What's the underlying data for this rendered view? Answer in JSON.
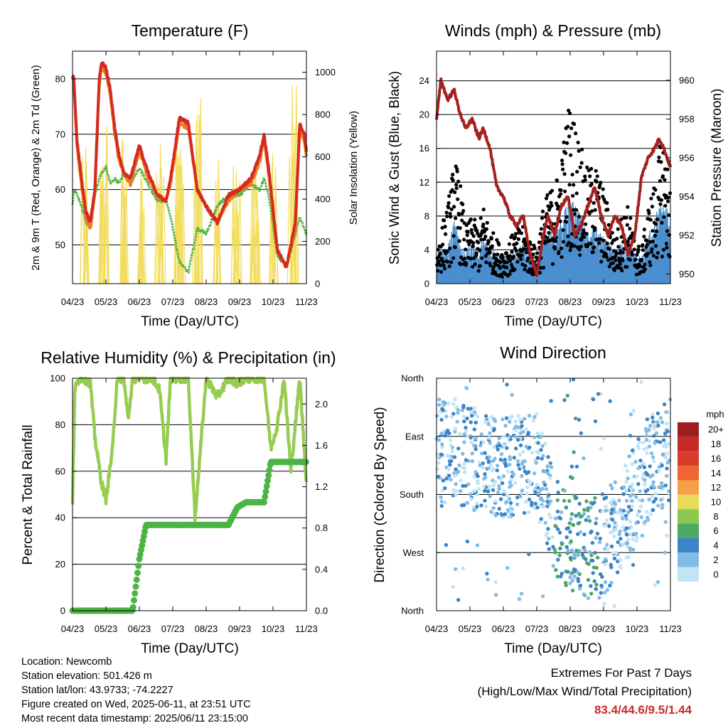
{
  "chart_data": [
    {
      "type": "line",
      "title": "Temperature (F)",
      "xlabel": "Time (Day/UTC)",
      "ylabel": "2m & 9m T (Red, Orange) & 2m Td (Green)",
      "y2label": "Solar Insolation (Yellow)",
      "xticks": [
        "04/23",
        "05/23",
        "06/23",
        "07/23",
        "08/23",
        "09/23",
        "10/23",
        "11/23"
      ],
      "ylim": [
        43,
        85
      ],
      "yticks": [
        50,
        60,
        70,
        80
      ],
      "y2lim": [
        0,
        1100
      ],
      "y2ticks": [
        0,
        200,
        400,
        600,
        800,
        1000
      ],
      "x": [
        0,
        0.05,
        0.2,
        0.4,
        0.6,
        0.8,
        1.0,
        1.2,
        1.3,
        1.5,
        1.7,
        1.9,
        2.1,
        2.3,
        2.6,
        3.0,
        3.4,
        3.8,
        4.2,
        4.4,
        4.8,
        5.2,
        5.6,
        6.0,
        6.5,
        7.0,
        7.5,
        8.0,
        8.4,
        8.6,
        8.8,
        9.2,
        9.6,
        10.0,
        10.2,
        10.4,
        10.5
      ],
      "series": [
        {
          "name": "2m T",
          "color": "#d42a22",
          "values": [
            80,
            81,
            69,
            62,
            56,
            54,
            60,
            80,
            83,
            82,
            78,
            71,
            66,
            63,
            62,
            68,
            63,
            59,
            58,
            62,
            73,
            72,
            60,
            57,
            54,
            59,
            60,
            62,
            66,
            70,
            64,
            49,
            46,
            54,
            72,
            70,
            67
          ]
        },
        {
          "name": "9m T",
          "color": "#f07a22",
          "values": [
            80,
            80,
            68,
            61,
            55,
            53,
            59,
            79,
            82,
            81,
            77,
            70,
            65,
            63,
            61,
            67,
            62,
            59,
            58,
            61,
            72,
            71,
            60,
            57,
            54,
            58,
            60,
            61,
            65,
            69,
            63,
            49,
            46,
            53,
            71,
            69,
            66
          ]
        },
        {
          "name": "2m Td",
          "color": "#5ab646",
          "values": [
            57,
            60,
            59,
            57,
            54,
            54,
            59,
            62,
            63,
            64,
            61,
            62,
            61,
            63,
            61,
            64,
            61,
            58,
            58,
            55,
            47,
            45,
            53,
            52,
            57,
            59,
            59,
            61,
            60,
            62,
            59,
            48,
            46,
            52,
            55,
            53,
            52
          ]
        }
      ],
      "solar_daily_peaks": [
        650,
        820,
        750,
        550,
        680,
        700,
        880,
        620,
        600,
        550,
        700,
        980
      ]
    },
    {
      "type": "scatter",
      "title": "Winds (mph) & Pressure (mb)",
      "xlabel": "Time (Day/UTC)",
      "ylabel": "Sonic Wind & Gust (Blue, Black)",
      "y2label": "Station Pressure (Maroon)",
      "xticks": [
        "04/23",
        "05/23",
        "06/23",
        "07/23",
        "08/23",
        "09/23",
        "10/23",
        "11/23"
      ],
      "ylim": [
        0,
        27.5
      ],
      "yticks": [
        0,
        4,
        8,
        12,
        16,
        20,
        24
      ],
      "y2lim": [
        949.5,
        961.5
      ],
      "y2ticks": [
        950,
        952,
        954,
        956,
        958,
        960
      ],
      "x": [
        0,
        0.2,
        0.5,
        0.8,
        1.0,
        1.3,
        1.6,
        1.9,
        2.1,
        2.4,
        2.7,
        3.0,
        3.3,
        3.6,
        3.9,
        4.2,
        4.5,
        4.8,
        5.0,
        5.3,
        5.6,
        5.9,
        6.2,
        6.5,
        6.8,
        7.1,
        7.4,
        7.7,
        8.0,
        8.3,
        8.6,
        8.9,
        9.2,
        9.5,
        9.8,
        10.0,
        10.2,
        10.5
      ],
      "pressure": [
        958,
        960,
        959,
        959.5,
        958.5,
        957.5,
        958,
        957,
        957.5,
        956.5,
        954.5,
        954,
        953,
        952.5,
        953,
        951,
        950,
        952,
        953,
        952,
        953.5,
        954,
        952,
        952.5,
        953.5,
        954.5,
        953,
        952,
        953,
        952.5,
        951,
        952,
        955,
        956,
        956.5,
        957,
        956.5,
        955.5
      ],
      "wind_mean": [
        1.5,
        2,
        2.5,
        4,
        3,
        2,
        2.5,
        2,
        3,
        2.5,
        2,
        1.5,
        2,
        2,
        2.5,
        2,
        1.5,
        3,
        3,
        3.5,
        4,
        5,
        5,
        4,
        3,
        3.5,
        3,
        2.5,
        2,
        2.5,
        3,
        2,
        1.5,
        3,
        4,
        5,
        5,
        4
      ],
      "gust": [
        3,
        5,
        7,
        11,
        10,
        5,
        6,
        5,
        7,
        5,
        4,
        3,
        4,
        5,
        5,
        4,
        3,
        7,
        8,
        9,
        11,
        16,
        15,
        12,
        10,
        11,
        9,
        7,
        4,
        6,
        7,
        4,
        3,
        7,
        9,
        12,
        13,
        9
      ]
    },
    {
      "type": "line",
      "title": "Relative Humidity (%) & Precipitation (in)",
      "xlabel": "Time (Day/UTC)",
      "ylabel": "Percent & Total Rainfall",
      "xticks": [
        "04/23",
        "05/23",
        "06/23",
        "07/23",
        "08/23",
        "09/23",
        "10/23",
        "11/23"
      ],
      "ylim": [
        0,
        100
      ],
      "yticks": [
        0,
        20,
        40,
        60,
        80,
        100
      ],
      "y2lim": [
        0,
        2.25
      ],
      "y2ticks": [
        0.0,
        0.4,
        0.8,
        1.2,
        1.6,
        2.0
      ],
      "x": [
        0,
        0.1,
        0.3,
        0.5,
        0.8,
        1.0,
        1.3,
        1.5,
        1.8,
        2.0,
        2.3,
        2.5,
        2.7,
        3.0,
        3.3,
        3.6,
        3.9,
        4.2,
        4.4,
        4.6,
        4.9,
        5.2,
        5.5,
        6.0,
        6.5,
        7.0,
        7.4,
        7.8,
        8.2,
        8.6,
        8.9,
        9.2,
        9.5,
        9.8,
        10.2,
        10.5
      ],
      "series": [
        {
          "name": "Relative Humidity",
          "color": "#96cc50",
          "values": [
            45,
            95,
            100,
            100,
            98,
            75,
            55,
            48,
            70,
            100,
            100,
            82,
            100,
            100,
            100,
            100,
            95,
            65,
            100,
            100,
            100,
            100,
            40,
            100,
            92,
            100,
            98,
            100,
            100,
            100,
            70,
            80,
            100,
            60,
            100,
            55
          ]
        },
        {
          "name": "Total Rainfall",
          "color": "#4cb444",
          "values": [
            0,
            0,
            0,
            0,
            0,
            0,
            0,
            0,
            0,
            0,
            0,
            0,
            0,
            0.5,
            0.83,
            0.83,
            0.83,
            0.83,
            0.83,
            0.83,
            0.83,
            0.83,
            0.83,
            0.83,
            0.83,
            0.83,
            1.0,
            1.05,
            1.05,
            1.05,
            1.44,
            1.44,
            1.44,
            1.44,
            1.44,
            1.44
          ]
        }
      ]
    },
    {
      "type": "scatter",
      "title": "Wind Direction",
      "xlabel": "Time (Day/UTC)",
      "ylabel": "Direction (Colored By Speed)",
      "xticks": [
        "04/23",
        "05/23",
        "06/23",
        "07/23",
        "08/23",
        "09/23",
        "10/23",
        "11/23"
      ],
      "yticks": [
        "North",
        "West",
        "South",
        "East",
        "North"
      ],
      "colorbar": {
        "title": "mph",
        "labels": [
          "20+",
          "18",
          "16",
          "14",
          "12",
          "10",
          "8",
          "6",
          "4",
          "2",
          "0"
        ],
        "colors": [
          "#9c1e1e",
          "#c62828",
          "#dc3a2a",
          "#ee6432",
          "#f6a046",
          "#e6dc5a",
          "#8cc850",
          "#4ca864",
          "#3c84c4",
          "#82bce6",
          "#c2e4f6"
        ]
      }
    }
  ],
  "info": {
    "location": "Location: Newcomb",
    "elevation": "Station elevation: 501.426 m",
    "latlon": "Station lat/lon: 43.9733; -74.2227",
    "created": "Figure created on Wed, 2025-06-11, at 23:51 UTC",
    "recent": "Most recent data timestamp: 2025/06/11 23:15:00"
  },
  "extremes": {
    "line1": "Extremes For Past 7 Days",
    "line2": "(High/Low/Max Wind/Total Precipitation)",
    "values": "83.4/44.6/9.5/1.44"
  }
}
